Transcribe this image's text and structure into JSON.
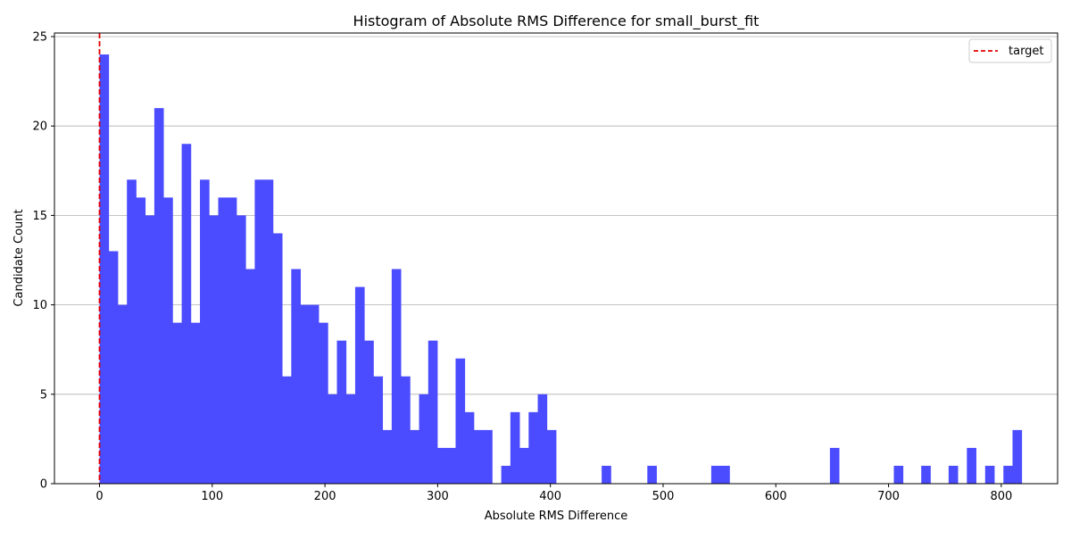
{
  "chart_data": {
    "type": "histogram",
    "title": "Histogram of Absolute RMS Difference for small_burst_fit",
    "xlabel": "Absolute RMS Difference",
    "ylabel": "Candidate Count",
    "xlim": [
      -40,
      850
    ],
    "ylim": [
      0,
      25.2
    ],
    "bin_width": 8.1,
    "bin_start": 0,
    "bar_color": "#4b4bff",
    "grid": "y",
    "xticks": [
      0,
      100,
      200,
      300,
      400,
      500,
      600,
      700,
      800
    ],
    "xtick_labels": [
      "0",
      "100",
      "200",
      "300",
      "400",
      "500",
      "600",
      "700",
      "800"
    ],
    "yticks": [
      0,
      5,
      10,
      15,
      20,
      25
    ],
    "ytick_labels": [
      "0",
      "5",
      "10",
      "15",
      "20",
      "25"
    ],
    "counts": [
      24,
      13,
      10,
      17,
      16,
      15,
      21,
      16,
      9,
      19,
      9,
      17,
      15,
      16,
      16,
      15,
      12,
      17,
      17,
      14,
      6,
      12,
      10,
      10,
      9,
      5,
      8,
      5,
      11,
      8,
      6,
      3,
      12,
      6,
      3,
      5,
      8,
      2,
      2,
      7,
      4,
      3,
      3,
      0,
      1,
      4,
      2,
      4,
      5,
      3,
      0,
      0,
      0,
      0,
      0,
      1,
      0,
      0,
      0,
      0,
      1,
      0,
      0,
      0,
      0,
      0,
      0,
      1,
      1,
      0,
      0,
      0,
      0,
      0,
      0,
      0,
      0,
      0,
      0,
      0,
      2,
      0,
      0,
      0,
      0,
      0,
      0,
      1,
      0,
      0,
      1,
      0,
      0,
      1,
      0,
      2,
      0,
      1,
      0,
      1,
      3
    ],
    "target_line": {
      "x": 0,
      "label": "target",
      "color": "#e00000",
      "style": "dashed"
    },
    "legend": {
      "position": "top-right",
      "entries": [
        "target"
      ]
    }
  }
}
